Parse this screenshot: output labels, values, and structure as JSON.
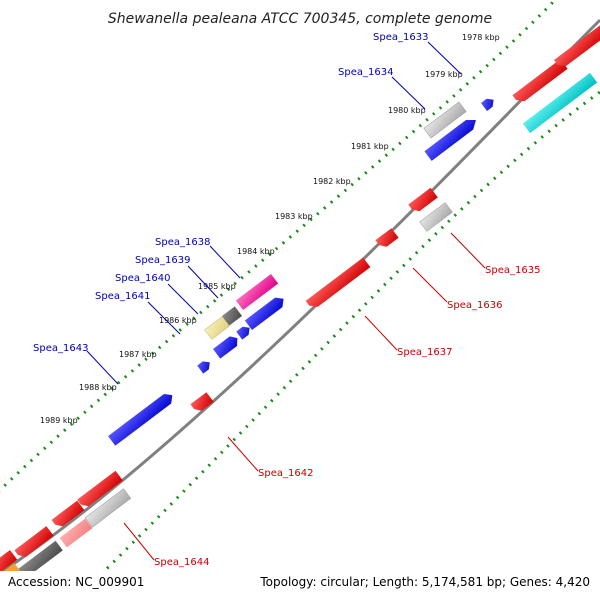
{
  "title": "Shewanella pealeana ATCC 700345, complete genome",
  "footer": {
    "accession": "Accession: NC_009901",
    "summary": "Topology: circular; Length: 5,174,581 bp; Genes: 4,420"
  },
  "scale_labels": [
    "1978 kbp",
    "1979 kbp",
    "1980 kbp",
    "1981 kbp",
    "1982 kbp",
    "1983 kbp",
    "1984 kbp",
    "1985 kbp",
    "1986 kbp",
    "1987 kbp",
    "1988 kbp",
    "1989 kbp"
  ],
  "gene_labels_forward": [
    "Spea_1633",
    "Spea_1634",
    "Spea_1638",
    "Spea_1639",
    "Spea_1640",
    "Spea_1641",
    "Spea_1643"
  ],
  "gene_labels_reverse": [
    "Spea_1635",
    "Spea_1636",
    "Spea_1637",
    "Spea_1642",
    "Spea_1644"
  ],
  "colors": {
    "forward_label": "#0000b4",
    "reverse_label": "#c80000",
    "backbone": "#808080",
    "tick": "#1a8a1a",
    "forward_cds": "#0000ff",
    "reverse_cds": "#ff0000",
    "pseudo": "#bbbbbb",
    "rna": "#00cccc"
  }
}
